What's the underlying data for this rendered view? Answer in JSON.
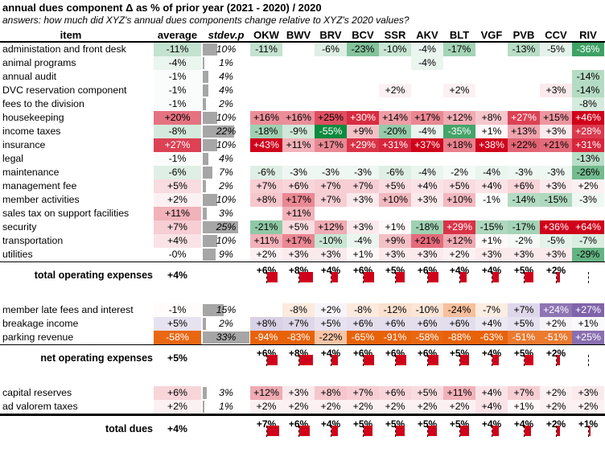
{
  "title": "annual dues component Δ as % of prior year (2021 - 2020) / 2020",
  "subtitle": "answers: how much did XYZ's annual dues components change relative to XYZ's 2020 values?",
  "colors": {
    "increase_expense": "#d0021b",
    "decrease_expense": "#0e8a3e",
    "increase_revenue": "#7b5ea7",
    "decrease_revenue": "#e8620a",
    "stdev_bar": "#a6a6a6"
  },
  "headers": {
    "item": "item",
    "average": "average",
    "stdev": "stdev.p",
    "resorts": [
      "OKW",
      "BWV",
      "BRV",
      "BCV",
      "SSR",
      "AKV",
      "BLT",
      "VGF",
      "PVB",
      "CCV",
      "RIV"
    ]
  },
  "expenses": [
    {
      "item": "administation and front desk",
      "average": "-11%",
      "stdev": "10%",
      "values": [
        "-11%",
        null,
        "-6%",
        "-23%",
        "-10%",
        "-4%",
        "-17%",
        null,
        "-13%",
        "-5%",
        "-36%"
      ]
    },
    {
      "item": "animal programs",
      "average": "-4%",
      "stdev": "1%",
      "values": [
        null,
        null,
        null,
        null,
        null,
        "-4%",
        null,
        null,
        null,
        null,
        null
      ]
    },
    {
      "item": "annual audit",
      "average": "-1%",
      "stdev": "4%",
      "values": [
        null,
        null,
        null,
        null,
        null,
        null,
        null,
        null,
        null,
        null,
        "-14%"
      ]
    },
    {
      "item": "DVC reservation component",
      "average": "-1%",
      "stdev": "4%",
      "values": [
        null,
        null,
        null,
        null,
        "+2%",
        null,
        "+2%",
        null,
        null,
        "+3%",
        "-14%"
      ]
    },
    {
      "item": "fees to the division",
      "average": "-1%",
      "stdev": "2%",
      "values": [
        null,
        null,
        null,
        null,
        null,
        null,
        null,
        null,
        null,
        null,
        "-8%"
      ]
    },
    {
      "item": "housekeeping",
      "average": "+20%",
      "stdev": "10%",
      "values": [
        "+16%",
        "+16%",
        "+25%",
        "+30%",
        "+14%",
        "+17%",
        "+12%",
        "+8%",
        "+27%",
        "+15%",
        "+46%"
      ]
    },
    {
      "item": "income taxes",
      "average": "-8%",
      "stdev": "22%",
      "values": [
        "-18%",
        "-9%",
        "-55%",
        "+9%",
        "-20%",
        "-4%",
        "-35%",
        "+1%",
        "+13%",
        "+3%",
        "+28%"
      ]
    },
    {
      "item": "insurance",
      "average": "+27%",
      "stdev": "10%",
      "values": [
        "+43%",
        "+11%",
        "+17%",
        "+29%",
        "+31%",
        "+37%",
        "+18%",
        "+38%",
        "+22%",
        "+21%",
        "+31%"
      ]
    },
    {
      "item": "legal",
      "average": "-1%",
      "stdev": "4%",
      "values": [
        null,
        null,
        null,
        null,
        null,
        null,
        null,
        null,
        null,
        null,
        "-13%"
      ]
    },
    {
      "item": "maintenance",
      "average": "-6%",
      "stdev": "7%",
      "values": [
        "-6%",
        "-3%",
        "-3%",
        "-3%",
        "-6%",
        "-4%",
        "-2%",
        "-4%",
        "-3%",
        "-3%",
        "-26%"
      ]
    },
    {
      "item": "management fee",
      "average": "+5%",
      "stdev": "2%",
      "values": [
        "+7%",
        "+6%",
        "+7%",
        "+7%",
        "+5%",
        "+4%",
        "+5%",
        "+4%",
        "+6%",
        "+3%",
        "+2%"
      ]
    },
    {
      "item": "member activities",
      "average": "+2%",
      "stdev": "10%",
      "values": [
        "+8%",
        "+17%",
        "+7%",
        "+3%",
        "+10%",
        "+3%",
        "+10%",
        "-1%",
        "-14%",
        "-15%",
        "-3%"
      ]
    },
    {
      "item": "sales tax on support facilities",
      "average": "+11%",
      "stdev": "3%",
      "values": [
        null,
        "+11%",
        null,
        null,
        null,
        null,
        null,
        null,
        null,
        null,
        null
      ]
    },
    {
      "item": "security",
      "average": "+7%",
      "stdev": "25%",
      "values": [
        "-21%",
        "+5%",
        "+12%",
        "+3%",
        "+1%",
        "-18%",
        "+29%",
        "-15%",
        "-17%",
        "+36%",
        "+64%"
      ]
    },
    {
      "item": "transportation",
      "average": "+4%",
      "stdev": "10%",
      "values": [
        "+11%",
        "+17%",
        "-10%",
        "-4%",
        "+9%",
        "+21%",
        "+12%",
        "+1%",
        "-2%",
        "-5%",
        "-7%"
      ]
    },
    {
      "item": "utilities",
      "average": "-0%",
      "stdev": "9%",
      "values": [
        "+2%",
        "+3%",
        "+3%",
        "+1%",
        "+3%",
        "+3%",
        "+2%",
        "+3%",
        "+3%",
        "+3%",
        "-29%"
      ]
    }
  ],
  "total_operating": {
    "label": "total operating expenses",
    "average": "+4%",
    "values": [
      "+6%",
      "+8%",
      "+4%",
      "+6%",
      "+5%",
      "+6%",
      "+4%",
      "+4%",
      "+5%",
      "+2%",
      null
    ]
  },
  "revenues": [
    {
      "item": "member late fees and interest",
      "average": "-1%",
      "stdev": "15%",
      "values": [
        null,
        "-8%",
        "+2%",
        "-8%",
        "-12%",
        "-10%",
        "-24%",
        "-7%",
        "+7%",
        "+24%",
        "+27%"
      ]
    },
    {
      "item": "breakage income",
      "average": "+5%",
      "stdev": "2%",
      "values": [
        "+8%",
        "+7%",
        "+5%",
        "+6%",
        "+6%",
        "+6%",
        "+6%",
        "+4%",
        "+5%",
        "+2%",
        "+1%"
      ]
    },
    {
      "item": "parking revenue",
      "average": "-58%",
      "stdev": "33%",
      "values": [
        "-94%",
        "-83%",
        "-22%",
        "-65%",
        "-91%",
        "-58%",
        "-88%",
        "-63%",
        "-51%",
        "-51%",
        "+25%"
      ]
    }
  ],
  "net_operating": {
    "label": "net operating expenses",
    "average": "+5%",
    "values": [
      "+6%",
      "+8%",
      "+4%",
      "+6%",
      "+6%",
      "+6%",
      "+5%",
      "+4%",
      "+5%",
      "+2%",
      null
    ]
  },
  "other": [
    {
      "item": "capital reserves",
      "average": "+6%",
      "stdev": "3%",
      "values": [
        "+12%",
        "+3%",
        "+8%",
        "+7%",
        "+6%",
        "+5%",
        "+11%",
        "+4%",
        "+7%",
        "+2%",
        "+3%"
      ]
    },
    {
      "item": "ad valorem taxes",
      "average": "+2%",
      "stdev": "1%",
      "values": [
        "+2%",
        "+2%",
        "+2%",
        "+2%",
        "+2%",
        "+2%",
        "+2%",
        "+4%",
        "+1%",
        "+2%",
        "+2%"
      ]
    }
  ],
  "total_dues": {
    "label": "total dues",
    "average": "+4%",
    "values": [
      "+7%",
      "+6%",
      "+4%",
      "+5%",
      "+5%",
      "+5%",
      "+5%",
      "+4%",
      "+4%",
      "+2%",
      "+1%"
    ]
  }
}
